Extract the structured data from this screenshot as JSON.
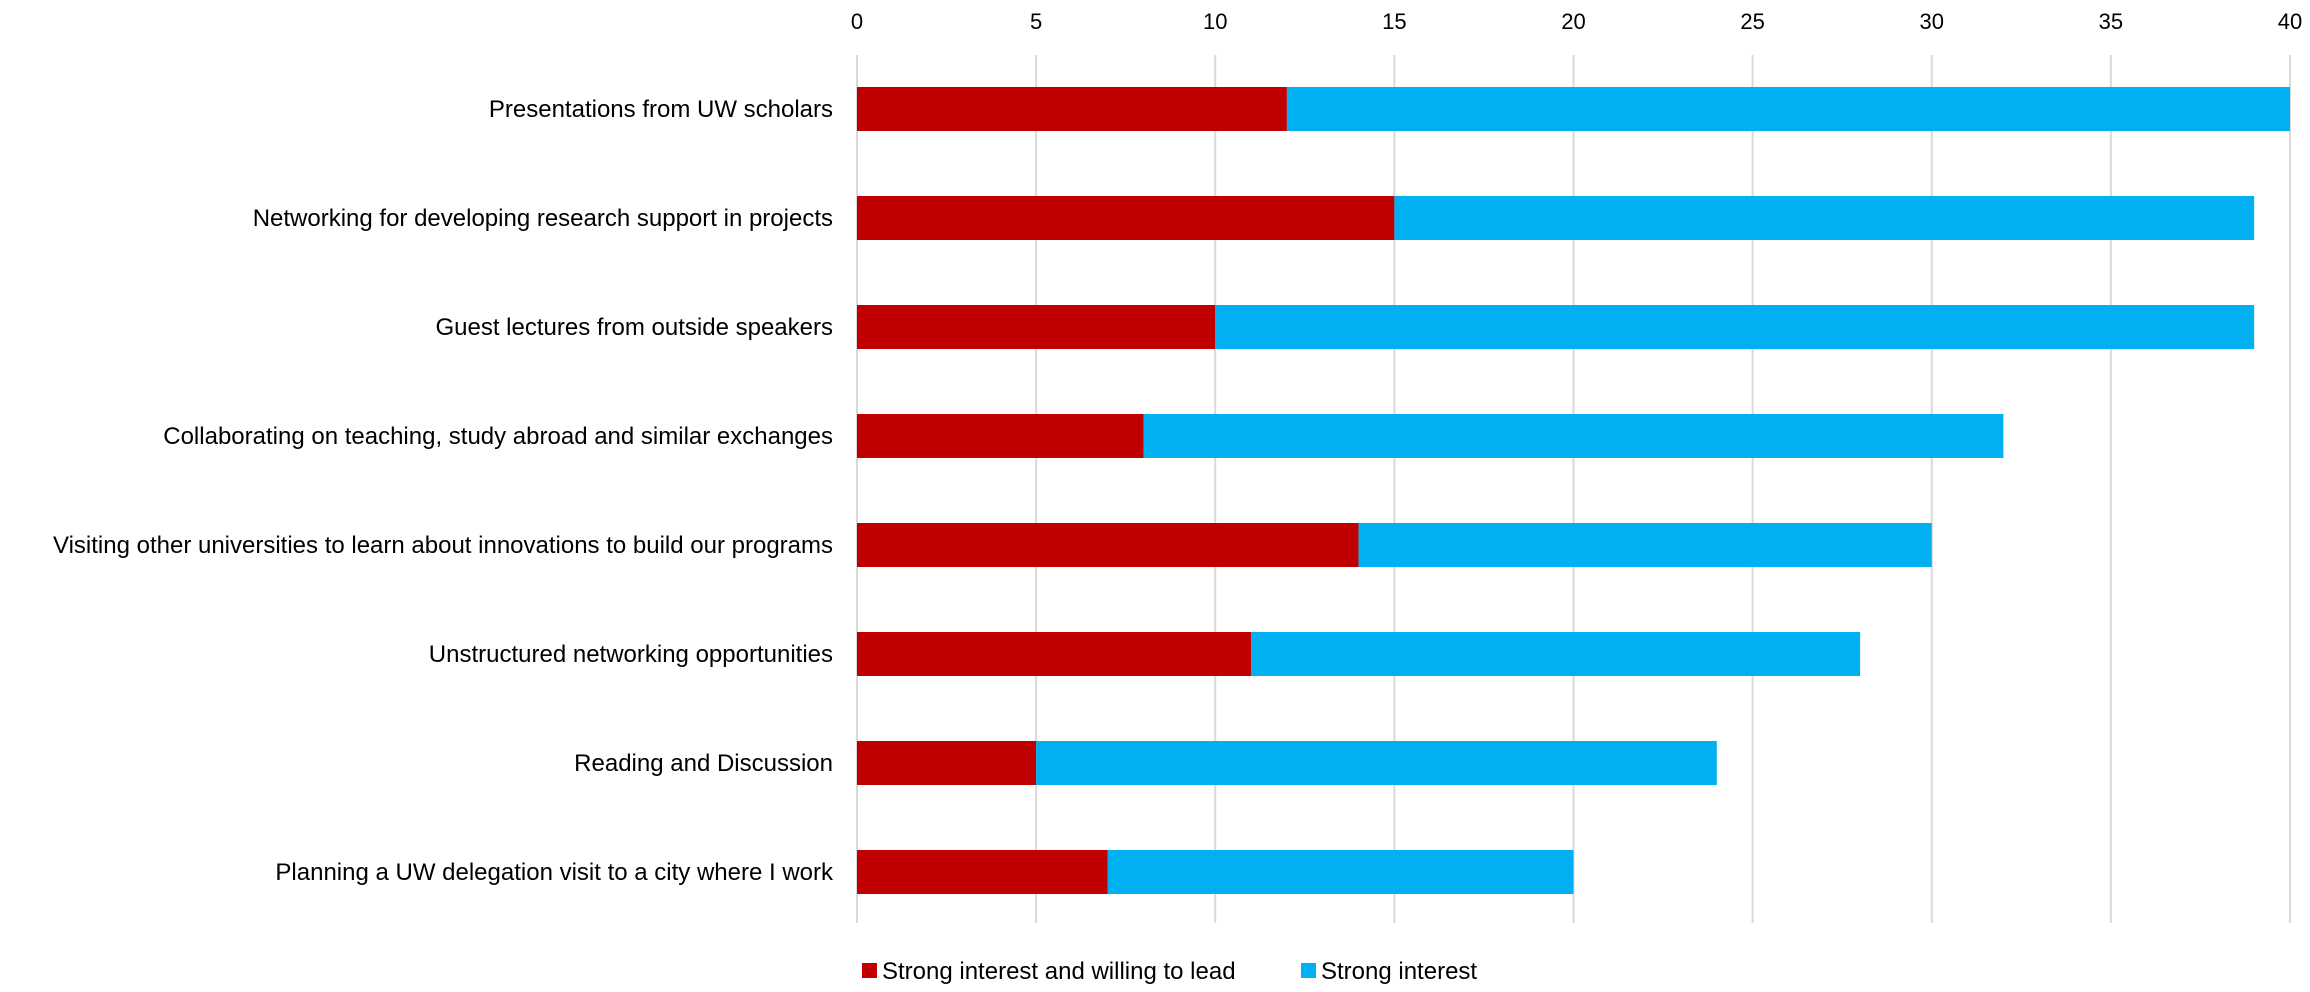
{
  "chart_data": {
    "type": "bar",
    "orientation": "horizontal",
    "stacked": true,
    "title": "",
    "xlabel": "",
    "ylabel": "",
    "xlim": [
      0,
      40
    ],
    "x_ticks": [
      "0",
      "5",
      "10",
      "15",
      "20",
      "25",
      "30",
      "35",
      "40"
    ],
    "x_axis_position": "top",
    "grid": "vertical",
    "legend_position": "bottom-left",
    "categories": [
      "Presentations from UW scholars",
      "Networking for developing research support in projects",
      "Guest lectures from outside speakers",
      "Collaborating on teaching, study abroad and similar exchanges",
      "Visiting other universities to learn about innovations to build our programs",
      "Unstructured networking opportunities",
      "Reading and Discussion",
      "Planning a UW delegation visit to a city where I work"
    ],
    "series": [
      {
        "name": "Strong interest and willing to lead",
        "color": "#C00000",
        "values": [
          12,
          15,
          10,
          8,
          14,
          11,
          5,
          7
        ]
      },
      {
        "name": "Strong interest",
        "color": "#00B0F0",
        "values": [
          28,
          24,
          29,
          24,
          16,
          17,
          19,
          13
        ]
      }
    ]
  }
}
